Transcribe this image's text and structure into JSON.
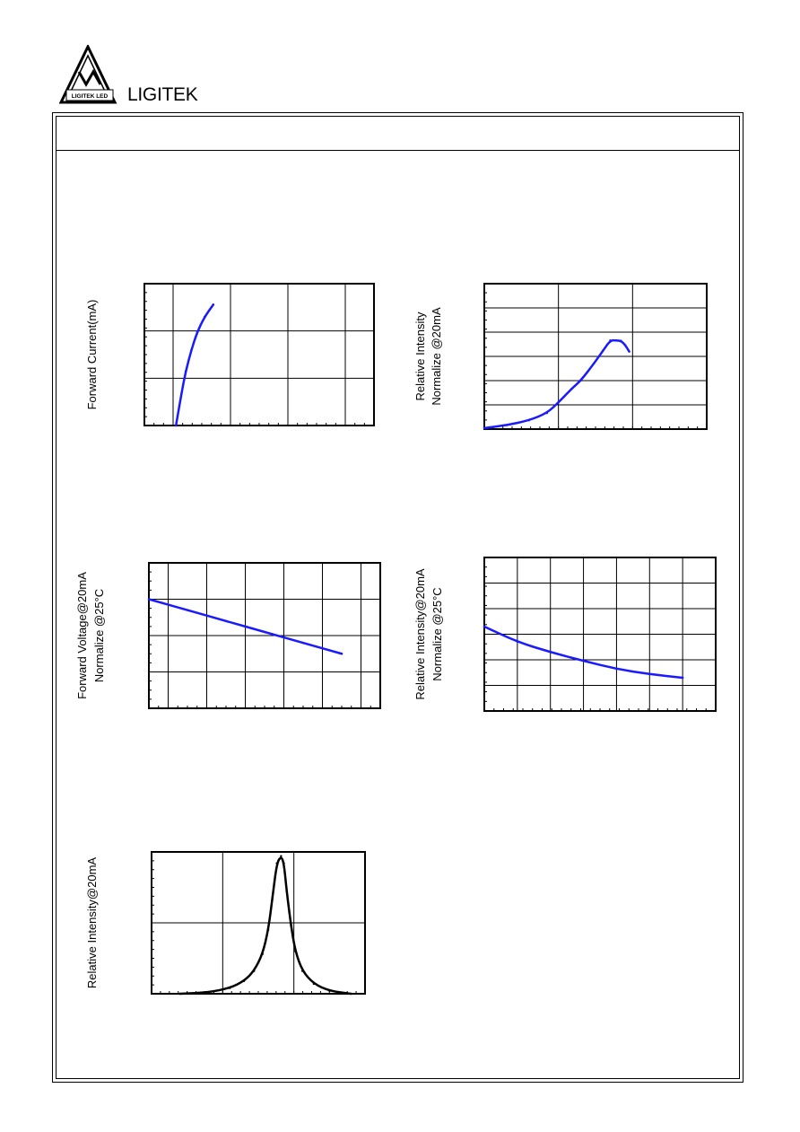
{
  "brand": {
    "logo_text": "LIGITEK LED",
    "name": "LIGITEK"
  },
  "chart_data": [
    {
      "id": "forward-current",
      "type": "line",
      "ylabel": [
        "Forward Current(mA)"
      ],
      "xlim": [
        1.5,
        5.5
      ],
      "ylim": [
        1,
        1000
      ],
      "yscale": "log",
      "x_grid": [
        2,
        3,
        4,
        5
      ],
      "y_grid": [
        10,
        100
      ],
      "grid": true,
      "series": [
        {
          "color": "#1a1aff",
          "x": [
            2.05,
            2.15,
            2.22,
            2.32,
            2.42,
            2.55,
            2.7
          ],
          "y": [
            1,
            5,
            14,
            40,
            95,
            200,
            360
          ]
        }
      ]
    },
    {
      "id": "relative-intensity-current",
      "type": "line",
      "ylabel": [
        "Relative Intensity",
        "Normalize @20mA"
      ],
      "xlim": [
        1,
        1000
      ],
      "xscale": "log",
      "ylim": [
        0,
        3.0
      ],
      "x_grid": [
        10,
        100
      ],
      "y_grid": [
        0.5,
        1.0,
        1.5,
        2.0,
        2.5
      ],
      "grid": true,
      "series": [
        {
          "color": "#1a1aff",
          "x": [
            1,
            2,
            4,
            7,
            10,
            15,
            20,
            30,
            40,
            50,
            60,
            70,
            80,
            90
          ],
          "y": [
            0.02,
            0.08,
            0.18,
            0.33,
            0.55,
            0.83,
            1.0,
            1.35,
            1.62,
            1.83,
            1.83,
            1.82,
            1.73,
            1.6
          ]
        }
      ]
    },
    {
      "id": "forward-voltage-temp",
      "type": "line",
      "ylabel": [
        "Forward Voltage@20mA",
        "Normalize @25°C"
      ],
      "xlim": [
        -20,
        100
      ],
      "ylim": [
        0.8,
        1.2
      ],
      "x_grid": [
        -10,
        10,
        30,
        50,
        70,
        90
      ],
      "y_grid": [
        0.9,
        1.0,
        1.1
      ],
      "grid": true,
      "series": [
        {
          "color": "#1a1aff",
          "x": [
            -20,
            0,
            20,
            40,
            60,
            80
          ],
          "y": [
            1.1,
            1.07,
            1.04,
            1.01,
            0.98,
            0.95
          ]
        }
      ]
    },
    {
      "id": "relative-intensity-temp",
      "type": "line",
      "ylabel": [
        "Relative Intensity@20mA",
        "Normalize @25°C"
      ],
      "xlim": [
        -30,
        110
      ],
      "ylim": [
        0,
        3.0
      ],
      "x_grid": [
        -10,
        10,
        30,
        50,
        70,
        90
      ],
      "y_grid": [
        0.5,
        1.0,
        1.5,
        2.0,
        2.5
      ],
      "grid": true,
      "series": [
        {
          "color": "#1a1aff",
          "x": [
            -30,
            -10,
            10,
            30,
            50,
            70,
            90
          ],
          "y": [
            1.65,
            1.35,
            1.15,
            0.98,
            0.82,
            0.72,
            0.65
          ]
        }
      ]
    },
    {
      "id": "spectral-distribution",
      "type": "line",
      "ylabel": [
        "Relative Intensity@20mA"
      ],
      "xlim": [
        500,
        650
      ],
      "ylim": [
        0,
        1.0
      ],
      "x_grid": [
        550,
        600
      ],
      "y_grid": [
        0.5
      ],
      "grid": true,
      "series": [
        {
          "color": "#000000",
          "x": [
            520,
            540,
            555,
            565,
            572,
            578,
            582,
            585,
            588,
            591,
            593,
            595,
            598,
            601,
            606,
            614,
            625,
            640
          ],
          "y": [
            0.0,
            0.01,
            0.04,
            0.09,
            0.16,
            0.28,
            0.45,
            0.68,
            0.92,
            0.97,
            0.92,
            0.72,
            0.48,
            0.3,
            0.16,
            0.07,
            0.02,
            0.0
          ]
        }
      ]
    }
  ]
}
